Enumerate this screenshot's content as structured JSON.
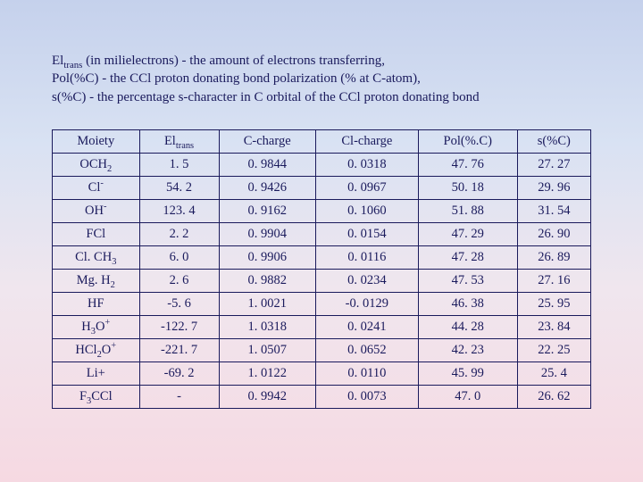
{
  "intro": {
    "line1_pre": "El",
    "line1_sub": "trans",
    "line1_post": " (in milielectrons) - the amount of electrons transferring,",
    "line2": "Pol(%C) - the CCl proton donating bond polarization (% at C-atom),",
    "line3": "s(%C) - the percentage s-character in C orbital of the CCl proton donating bond"
  },
  "table": {
    "headers": {
      "h0": "Moiety",
      "h1_pre": "El",
      "h1_sub": "trans",
      "h2": "C-charge",
      "h3": "Cl-charge",
      "h4": "Pol(%.C)",
      "h5": "s(%C)"
    },
    "rows": [
      {
        "moiety_html": "OCH<span class='sub'>2</span>",
        "eltrans": "1. 5",
        "cch": "0. 9844",
        "clch": "0. 0318",
        "pol": "47. 76",
        "s": "27. 27"
      },
      {
        "moiety_html": "Cl<span class='sup'>-</span>",
        "eltrans": "54. 2",
        "cch": "0. 9426",
        "clch": "0. 0967",
        "pol": "50. 18",
        "s": "29. 96"
      },
      {
        "moiety_html": "OH<span class='sup'>-</span>",
        "eltrans": "123. 4",
        "cch": "0. 9162",
        "clch": "0. 1060",
        "pol": "51. 88",
        "s": "31. 54"
      },
      {
        "moiety_html": "FCl",
        "eltrans": "2. 2",
        "cch": "0. 9904",
        "clch": "0. 0154",
        "pol": "47. 29",
        "s": "26. 90"
      },
      {
        "moiety_html": "Cl. CH<span class='sub'>3</span>",
        "eltrans": "6. 0",
        "cch": "0. 9906",
        "clch": "0. 0116",
        "pol": "47. 28",
        "s": "26. 89"
      },
      {
        "moiety_html": "Mg. H<span class='sub'>2</span>",
        "eltrans": "2. 6",
        "cch": "0. 9882",
        "clch": "0. 0234",
        "pol": "47. 53",
        "s": "27. 16"
      },
      {
        "moiety_html": "HF",
        "eltrans": "-5. 6",
        "cch": "1. 0021",
        "clch": "-0. 0129",
        "pol": "46. 38",
        "s": "25. 95"
      },
      {
        "moiety_html": "H<span class='sub'>3</span>O<span class='sup'>+</span>",
        "eltrans": "-122. 7",
        "cch": "1. 0318",
        "clch": "0. 0241",
        "pol": "44. 28",
        "s": "23. 84"
      },
      {
        "moiety_html": "HCl<span class='sub'>2</span>O<span class='sup'>+</span>",
        "eltrans": "-221. 7",
        "cch": "1. 0507",
        "clch": "0. 0652",
        "pol": "42. 23",
        "s": "22. 25"
      },
      {
        "moiety_html": "Li+",
        "eltrans": "-69. 2",
        "cch": "1. 0122",
        "clch": "0. 0110",
        "pol": "45. 99",
        "s": "25. 4"
      },
      {
        "moiety_html": "F<span class='sub'>3</span>CCl",
        "eltrans": "-",
        "cch": "0. 9942",
        "clch": "0. 0073",
        "pol": "47. 0",
        "s": "26. 62"
      }
    ]
  },
  "style": {
    "text_color": "#1a1a5c",
    "border_color": "#1a1a5c",
    "bg_gradient_top": "#c5d1ec",
    "bg_gradient_bottom": "#f6d9e2",
    "font_family": "Times New Roman",
    "table_font_size_pt": 11,
    "intro_font_size_pt": 11
  }
}
